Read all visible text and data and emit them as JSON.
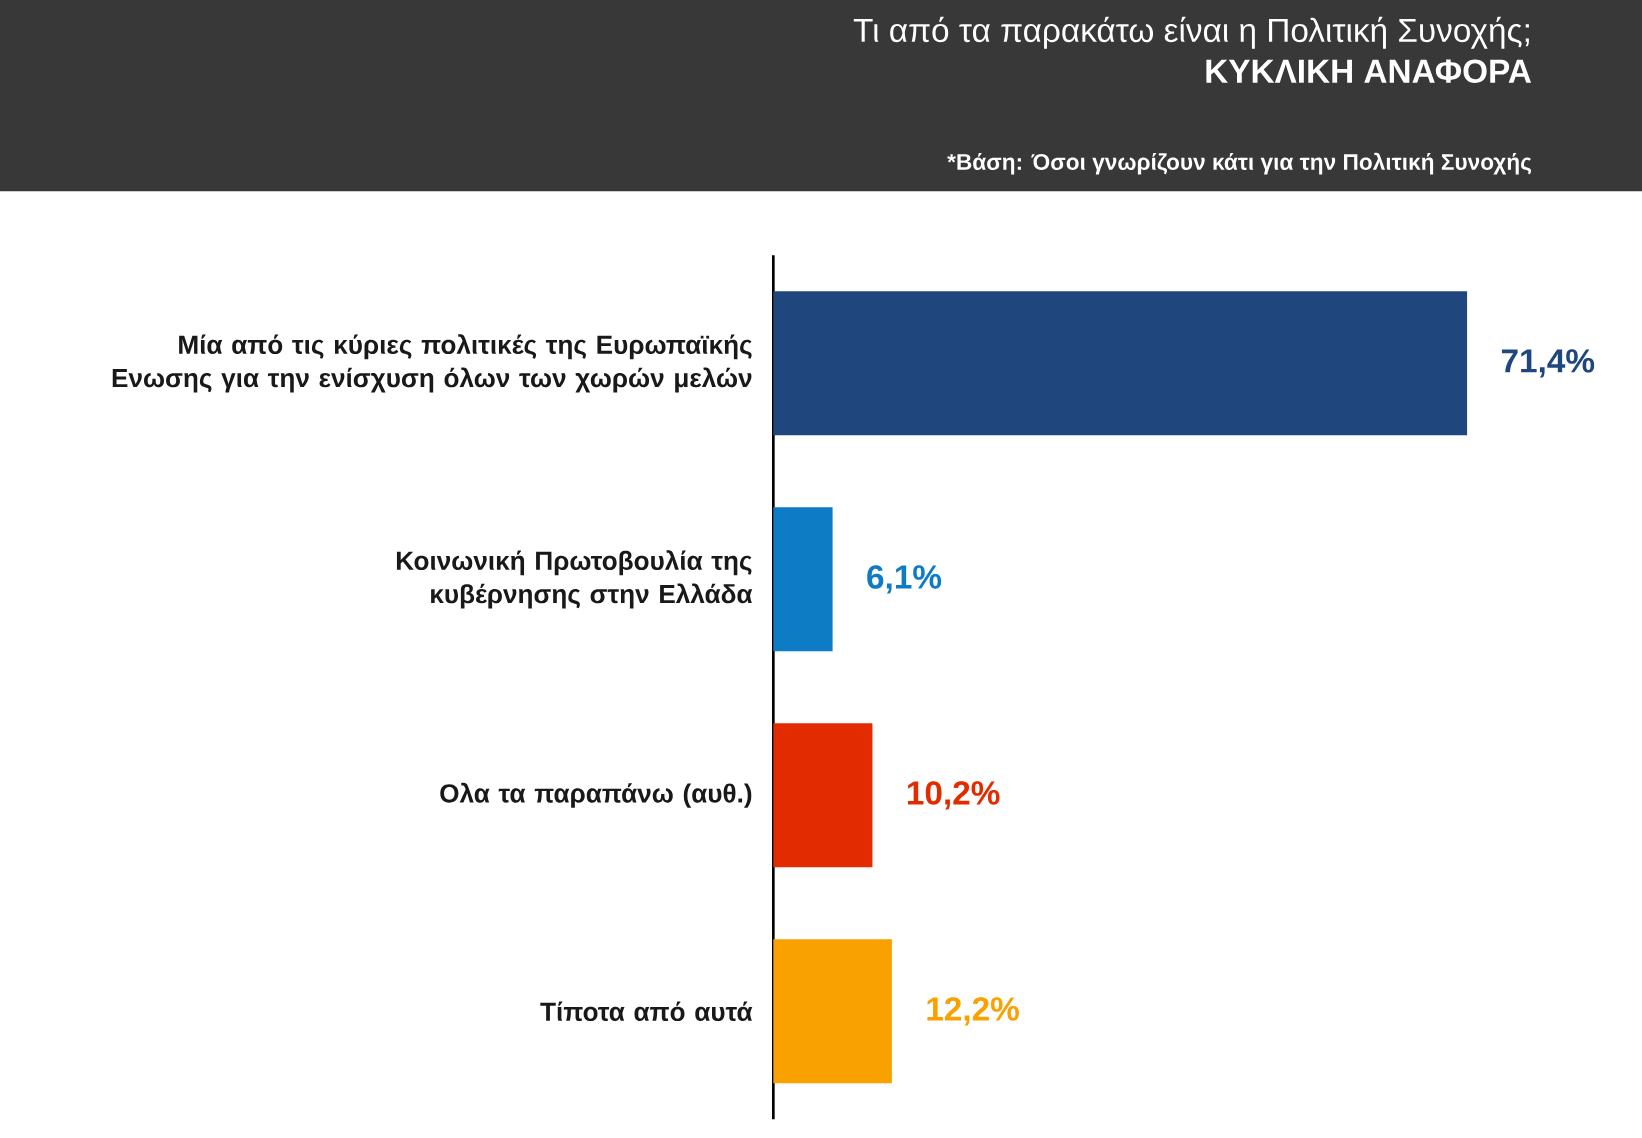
{
  "chart_data": {
    "type": "bar",
    "orientation": "horizontal",
    "title": "Τι από τα παρακάτω είναι η Πολιτική Συνοχής;",
    "subtitle": "ΚΥΚΛΙΚΗ ΑΝΑΦΟΡΑ",
    "annotations": [
      "*Βάση: Όσοι γνωρίζουν κάτι για την Πολιτική Συνοχής"
    ],
    "categories": [
      "Μία από τις κύριες πολιτικές της Ευρωπαϊκής Ενωσης για την ενίσχυση όλων των χωρών μελών",
      "Κοινωνική Πρωτοβουλία της κυβέρνησης στην Ελλάδα",
      "Ολα τα παραπάνω (αυθ.)",
      "Τίποτα από αυτά"
    ],
    "values": [
      71.4,
      6.1,
      10.2,
      12.2
    ],
    "value_labels": [
      "71,4%",
      "6,1%",
      "10,2%",
      "12,2%"
    ],
    "colors": [
      "#1f477d",
      "#0e7cc4",
      "#e32b00",
      "#f9a100"
    ],
    "grid": false
  }
}
